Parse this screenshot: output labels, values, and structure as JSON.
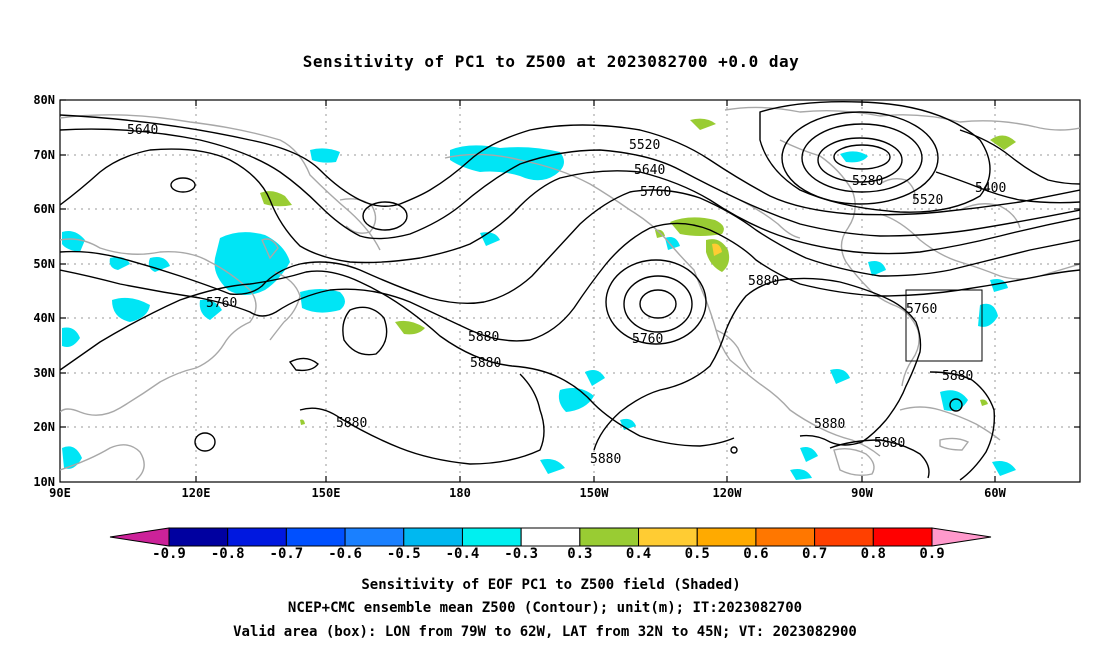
{
  "title": "Sensitivity of PC1 to Z500 at 2023082700 +0.0 day",
  "lat_labels": [
    "80N",
    "70N",
    "60N",
    "50N",
    "40N",
    "30N",
    "20N",
    "10N"
  ],
  "lon_labels": [
    "90E",
    "120E",
    "150E",
    "180",
    "150W",
    "120W",
    "90W",
    "60W"
  ],
  "contour_labels": [
    "5640",
    "5520",
    "5640",
    "5760",
    "5280",
    "5400",
    "5520",
    "5880",
    "5760",
    "5760",
    "5760",
    "5880",
    "5880",
    "5880",
    "5880",
    "5880",
    "5880"
  ],
  "colorbar": {
    "labels": [
      "-0.9",
      "-0.8",
      "-0.7",
      "-0.6",
      "-0.5",
      "-0.4",
      "-0.3",
      "0.3",
      "0.4",
      "0.5",
      "0.6",
      "0.7",
      "0.8",
      "0.9"
    ],
    "colors": [
      "#0000a0",
      "#0018e0",
      "#0050ff",
      "#1a80ff",
      "#00b8f0",
      "#00f0f0",
      "#ffffff",
      "#99cc33",
      "#ffcc33",
      "#ffaa00",
      "#ff7700",
      "#ff4000",
      "#ff0000"
    ],
    "low_tip_color": "#cc2299",
    "high_tip_color": "#ff99cc"
  },
  "footer": {
    "line1": "Sensitivity of EOF PC1 to Z500 field (Shaded)",
    "line2": "NCEP+CMC ensemble mean Z500 (Contour); unit(m); IT:2023082700",
    "line3": "Valid area (box): LON from 79W to 62W, LAT from 32N to 45N; VT: 2023082900"
  },
  "colors": {
    "contour": "#000000",
    "coastline": "#a8a8a8",
    "grid": "#9a9a9a",
    "negative_shading": "#00e5f5",
    "positive_shading": "#99cc33"
  }
}
